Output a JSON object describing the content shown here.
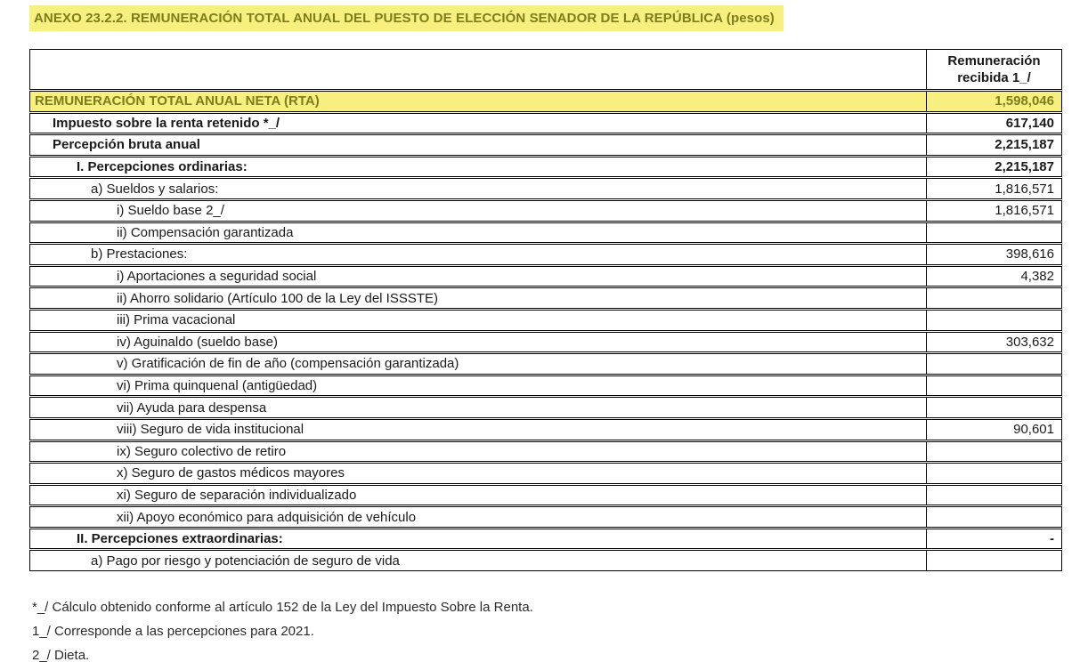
{
  "title": "ANEXO 23.2.2. REMUNERACIÓN TOTAL ANUAL DEL PUESTO DE ELECCIÓN SENADOR DE LA REPÚBLICA (pesos)",
  "colors": {
    "highlight_bg": "#F7F07E",
    "highlight_text": "#7D7D1E"
  },
  "table": {
    "value_column_header": "Remuneración recibida 1_/",
    "rows": [
      {
        "label": "REMUNERACIÓN TOTAL ANUAL NETA (RTA)",
        "value": "1,598,046",
        "indent": 0,
        "bold": true,
        "highlight": true
      },
      {
        "label": "Impuesto sobre la renta retenido *_/",
        "value": "617,140",
        "indent": 1,
        "bold": true,
        "highlight": false
      },
      {
        "label": "Percepción bruta anual",
        "value": "2,215,187",
        "indent": 1,
        "bold": true,
        "highlight": false
      },
      {
        "label": "I. Percepciones ordinarias:",
        "value": "2,215,187",
        "indent": 2,
        "bold": true,
        "highlight": false
      },
      {
        "label": "a) Sueldos y salarios:",
        "value": "1,816,571",
        "indent": 3,
        "bold": false,
        "highlight": false
      },
      {
        "label": "i) Sueldo base 2_/",
        "value": "1,816,571",
        "indent": 4,
        "bold": false,
        "highlight": false
      },
      {
        "label": "ii) Compensación garantizada",
        "value": "",
        "indent": 4,
        "bold": false,
        "highlight": false
      },
      {
        "label": "b) Prestaciones:",
        "value": "398,616",
        "indent": 3,
        "bold": false,
        "highlight": false
      },
      {
        "label": "i) Aportaciones a seguridad social",
        "value": "4,382",
        "indent": 4,
        "bold": false,
        "highlight": false
      },
      {
        "label": "ii) Ahorro solidario (Artículo 100 de la Ley del ISSSTE)",
        "value": "",
        "indent": 4,
        "bold": false,
        "highlight": false
      },
      {
        "label": "iii) Prima vacacional",
        "value": "",
        "indent": 4,
        "bold": false,
        "highlight": false
      },
      {
        "label": "iv) Aguinaldo (sueldo base)",
        "value": "303,632",
        "indent": 4,
        "bold": false,
        "highlight": false
      },
      {
        "label": "v) Gratificación de fin de año (compensación garantizada)",
        "value": "",
        "indent": 4,
        "bold": false,
        "highlight": false
      },
      {
        "label": "vi) Prima quinquenal (antigüedad)",
        "value": "",
        "indent": 4,
        "bold": false,
        "highlight": false
      },
      {
        "label": "vii) Ayuda para despensa",
        "value": "",
        "indent": 4,
        "bold": false,
        "highlight": false
      },
      {
        "label": "viii) Seguro de vida institucional",
        "value": "90,601",
        "indent": 4,
        "bold": false,
        "highlight": false
      },
      {
        "label": "ix) Seguro colectivo de retiro",
        "value": "",
        "indent": 4,
        "bold": false,
        "highlight": false
      },
      {
        "label": "x) Seguro de gastos médicos mayores",
        "value": "",
        "indent": 4,
        "bold": false,
        "highlight": false
      },
      {
        "label": "xi) Seguro de separación individualizado",
        "value": "",
        "indent": 4,
        "bold": false,
        "highlight": false
      },
      {
        "label": "xii) Apoyo económico para adquisición de vehículo",
        "value": "",
        "indent": 4,
        "bold": false,
        "highlight": false
      },
      {
        "label": "II. Percepciones extraordinarias:",
        "value": "-",
        "indent": 2,
        "bold": true,
        "highlight": false
      },
      {
        "label": "a) Pago por riesgo y potenciación de seguro de vida",
        "value": "",
        "indent": 3,
        "bold": false,
        "highlight": false
      }
    ]
  },
  "footnotes": [
    "*_/ Cálculo obtenido conforme al artículo 152 de la Ley del Impuesto Sobre la Renta.",
    "1_/ Corresponde a las percepciones para 2021.",
    "2_/ Dieta."
  ]
}
